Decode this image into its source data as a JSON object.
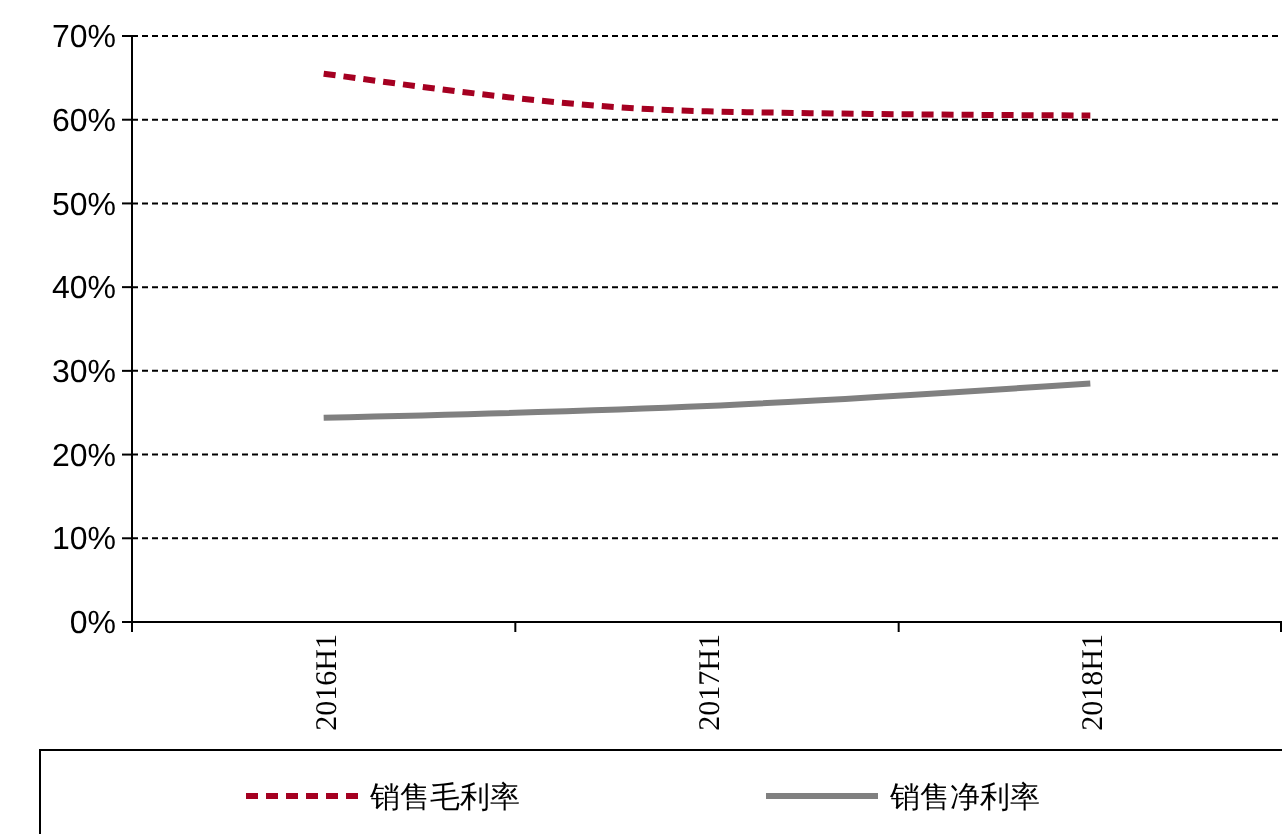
{
  "chart_data": {
    "type": "line",
    "categories": [
      "2016H1",
      "2017H1",
      "2018H1"
    ],
    "series": [
      {
        "name": "销售毛利率",
        "color": "#a50021",
        "values": [
          65.5,
          61,
          60.5
        ],
        "line_style": "dashed"
      },
      {
        "name": "销售净利率",
        "color": "#808080",
        "values": [
          24.4,
          25.8,
          28.5
        ],
        "line_style": "solid"
      }
    ],
    "ylim": [
      0,
      70
    ],
    "yticks": [
      {
        "value": 0,
        "label": "0%"
      },
      {
        "value": 10,
        "label": "10%"
      },
      {
        "value": 20,
        "label": "20%"
      },
      {
        "value": 30,
        "label": "30%"
      },
      {
        "value": 40,
        "label": "40%"
      },
      {
        "value": 50,
        "label": "50%"
      },
      {
        "value": 60,
        "label": "60%"
      },
      {
        "value": 70,
        "label": "70%"
      }
    ],
    "grid": "y",
    "legend": "bottom"
  }
}
